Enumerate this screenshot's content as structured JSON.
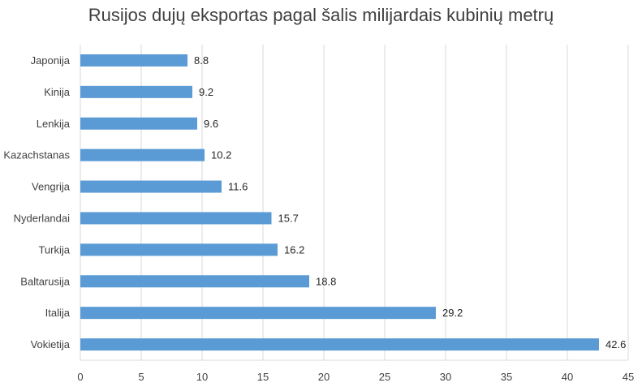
{
  "chart_data": {
    "type": "bar",
    "orientation": "horizontal",
    "title": "Rusijos dujų eksportas pagal šalis milijardais kubinių metrų",
    "categories": [
      "Japonija",
      "Kinija",
      "Lenkija",
      "Kazachstanas",
      "Vengrija",
      "Nyderlandai",
      "Turkija",
      "Baltarusija",
      "Italija",
      "Vokietija"
    ],
    "values": [
      8.8,
      9.2,
      9.6,
      10.2,
      11.6,
      15.7,
      16.2,
      18.8,
      29.2,
      42.6
    ],
    "value_labels": [
      "8.8",
      "9.2",
      "9.6",
      "10.2",
      "11.6",
      "15.7",
      "16.2",
      "18.8",
      "29.2",
      "42.6"
    ],
    "xlim": [
      0,
      45
    ],
    "x_ticks": [
      0,
      5,
      10,
      15,
      20,
      25,
      30,
      35,
      40,
      45
    ],
    "grid": "vertical",
    "bar_color": "#5b9bd5",
    "grid_color": "#d9d9d9"
  }
}
